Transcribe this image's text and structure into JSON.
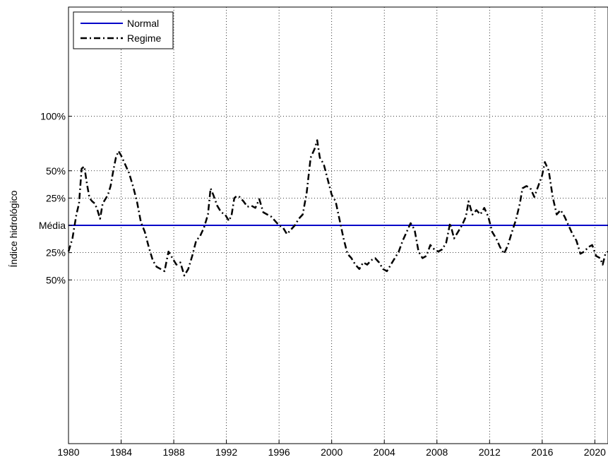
{
  "chart_data": {
    "type": "line",
    "xlim": [
      1980,
      2021
    ],
    "ylim": [
      -2.0,
      2.0
    ],
    "ylabel": "Índice hidrológico",
    "x_ticks": [
      {
        "value": 1980,
        "label": "1980"
      },
      {
        "value": 1984,
        "label": "1984"
      },
      {
        "value": 1988,
        "label": "1988"
      },
      {
        "value": 1992,
        "label": "1992"
      },
      {
        "value": 1996,
        "label": "1996"
      },
      {
        "value": 2000,
        "label": "2000"
      },
      {
        "value": 2004,
        "label": "2004"
      },
      {
        "value": 2008,
        "label": "2008"
      },
      {
        "value": 2012,
        "label": "2012"
      },
      {
        "value": 2016,
        "label": "2016"
      },
      {
        "value": 2020,
        "label": "2020"
      }
    ],
    "y_ticks": [
      {
        "value": 1.0,
        "label": "100%"
      },
      {
        "value": 0.5,
        "label": "50%"
      },
      {
        "value": 0.25,
        "label": "25%"
      },
      {
        "value": 0.0,
        "label": "Média"
      },
      {
        "value": -0.25,
        "label": "25%"
      },
      {
        "value": -0.5,
        "label": "50%"
      }
    ],
    "grid": true,
    "legend_position": "top-left",
    "series": [
      {
        "name": "Normal",
        "style": "solid",
        "color": "#0000c8",
        "points": [
          [
            1980,
            0.0
          ],
          [
            2021,
            0.0
          ]
        ]
      },
      {
        "name": "Regime",
        "style": "dash-dot",
        "color": "#000000",
        "points": [
          [
            1980.0,
            -0.24
          ],
          [
            1980.3,
            -0.12
          ],
          [
            1980.6,
            0.1
          ],
          [
            1980.8,
            0.2
          ],
          [
            1981.0,
            0.52
          ],
          [
            1981.2,
            0.54
          ],
          [
            1981.4,
            0.38
          ],
          [
            1981.6,
            0.25
          ],
          [
            1981.8,
            0.22
          ],
          [
            1982.0,
            0.2
          ],
          [
            1982.2,
            0.14
          ],
          [
            1982.4,
            0.06
          ],
          [
            1982.6,
            0.2
          ],
          [
            1982.8,
            0.24
          ],
          [
            1983.0,
            0.28
          ],
          [
            1983.2,
            0.36
          ],
          [
            1983.4,
            0.5
          ],
          [
            1983.6,
            0.62
          ],
          [
            1983.8,
            0.68
          ],
          [
            1984.0,
            0.64
          ],
          [
            1984.3,
            0.56
          ],
          [
            1984.6,
            0.48
          ],
          [
            1984.9,
            0.36
          ],
          [
            1985.2,
            0.22
          ],
          [
            1985.5,
            0.03
          ],
          [
            1985.8,
            -0.06
          ],
          [
            1986.1,
            -0.2
          ],
          [
            1986.4,
            -0.32
          ],
          [
            1986.7,
            -0.38
          ],
          [
            1987.0,
            -0.4
          ],
          [
            1987.3,
            -0.42
          ],
          [
            1987.6,
            -0.24
          ],
          [
            1987.9,
            -0.3
          ],
          [
            1988.2,
            -0.36
          ],
          [
            1988.5,
            -0.34
          ],
          [
            1988.8,
            -0.46
          ],
          [
            1989.1,
            -0.4
          ],
          [
            1989.4,
            -0.28
          ],
          [
            1989.7,
            -0.14
          ],
          [
            1990.0,
            -0.1
          ],
          [
            1990.3,
            -0.02
          ],
          [
            1990.6,
            0.1
          ],
          [
            1990.8,
            0.34
          ],
          [
            1991.0,
            0.28
          ],
          [
            1991.3,
            0.18
          ],
          [
            1991.6,
            0.12
          ],
          [
            1991.9,
            0.1
          ],
          [
            1992.2,
            0.04
          ],
          [
            1992.4,
            0.1
          ],
          [
            1992.6,
            0.25
          ],
          [
            1992.8,
            0.27
          ],
          [
            1993.0,
            0.26
          ],
          [
            1993.3,
            0.22
          ],
          [
            1993.6,
            0.17
          ],
          [
            1993.9,
            0.18
          ],
          [
            1994.2,
            0.16
          ],
          [
            1994.5,
            0.24
          ],
          [
            1994.8,
            0.12
          ],
          [
            1995.1,
            0.1
          ],
          [
            1995.4,
            0.08
          ],
          [
            1995.7,
            0.04
          ],
          [
            1996.0,
            0.0
          ],
          [
            1996.3,
            -0.02
          ],
          [
            1996.6,
            -0.08
          ],
          [
            1996.9,
            -0.04
          ],
          [
            1997.2,
            0.0
          ],
          [
            1997.5,
            0.06
          ],
          [
            1997.8,
            0.1
          ],
          [
            1998.1,
            0.3
          ],
          [
            1998.4,
            0.62
          ],
          [
            1998.7,
            0.7
          ],
          [
            1998.9,
            0.78
          ],
          [
            1999.1,
            0.62
          ],
          [
            1999.4,
            0.56
          ],
          [
            1999.7,
            0.42
          ],
          [
            2000.0,
            0.28
          ],
          [
            2000.3,
            0.22
          ],
          [
            2000.6,
            0.05
          ],
          [
            2000.9,
            -0.12
          ],
          [
            2001.2,
            -0.26
          ],
          [
            2001.5,
            -0.3
          ],
          [
            2001.8,
            -0.36
          ],
          [
            2002.1,
            -0.4
          ],
          [
            2002.4,
            -0.34
          ],
          [
            2002.7,
            -0.36
          ],
          [
            2003.0,
            -0.32
          ],
          [
            2003.3,
            -0.3
          ],
          [
            2003.6,
            -0.34
          ],
          [
            2003.9,
            -0.4
          ],
          [
            2004.2,
            -0.42
          ],
          [
            2004.5,
            -0.36
          ],
          [
            2004.8,
            -0.3
          ],
          [
            2005.1,
            -0.24
          ],
          [
            2005.4,
            -0.14
          ],
          [
            2005.7,
            -0.06
          ],
          [
            2006.0,
            0.02
          ],
          [
            2006.3,
            -0.04
          ],
          [
            2006.6,
            -0.24
          ],
          [
            2006.9,
            -0.3
          ],
          [
            2007.2,
            -0.28
          ],
          [
            2007.5,
            -0.18
          ],
          [
            2007.8,
            -0.22
          ],
          [
            2008.1,
            -0.24
          ],
          [
            2008.4,
            -0.22
          ],
          [
            2008.7,
            -0.16
          ],
          [
            2009.0,
            0.02
          ],
          [
            2009.3,
            -0.12
          ],
          [
            2009.6,
            -0.06
          ],
          [
            2009.9,
            0.0
          ],
          [
            2010.2,
            0.08
          ],
          [
            2010.4,
            0.22
          ],
          [
            2010.7,
            0.1
          ],
          [
            2011.0,
            0.14
          ],
          [
            2011.3,
            0.1
          ],
          [
            2011.6,
            0.16
          ],
          [
            2011.9,
            0.08
          ],
          [
            2012.2,
            -0.06
          ],
          [
            2012.5,
            -0.12
          ],
          [
            2012.8,
            -0.2
          ],
          [
            2013.1,
            -0.26
          ],
          [
            2013.4,
            -0.18
          ],
          [
            2013.7,
            -0.06
          ],
          [
            2014.0,
            0.05
          ],
          [
            2014.3,
            0.2
          ],
          [
            2014.5,
            0.34
          ],
          [
            2014.8,
            0.36
          ],
          [
            2015.1,
            0.34
          ],
          [
            2015.4,
            0.26
          ],
          [
            2015.7,
            0.36
          ],
          [
            2016.0,
            0.46
          ],
          [
            2016.2,
            0.58
          ],
          [
            2016.5,
            0.5
          ],
          [
            2016.8,
            0.26
          ],
          [
            2017.1,
            0.1
          ],
          [
            2017.4,
            0.14
          ],
          [
            2017.7,
            0.08
          ],
          [
            2018.0,
            0.0
          ],
          [
            2018.3,
            -0.08
          ],
          [
            2018.6,
            -0.14
          ],
          [
            2018.9,
            -0.26
          ],
          [
            2019.2,
            -0.24
          ],
          [
            2019.5,
            -0.2
          ],
          [
            2019.8,
            -0.18
          ],
          [
            2020.1,
            -0.28
          ],
          [
            2020.4,
            -0.3
          ],
          [
            2020.6,
            -0.36
          ],
          [
            2020.8,
            -0.26
          ],
          [
            2021.0,
            -0.24
          ]
        ]
      }
    ]
  }
}
